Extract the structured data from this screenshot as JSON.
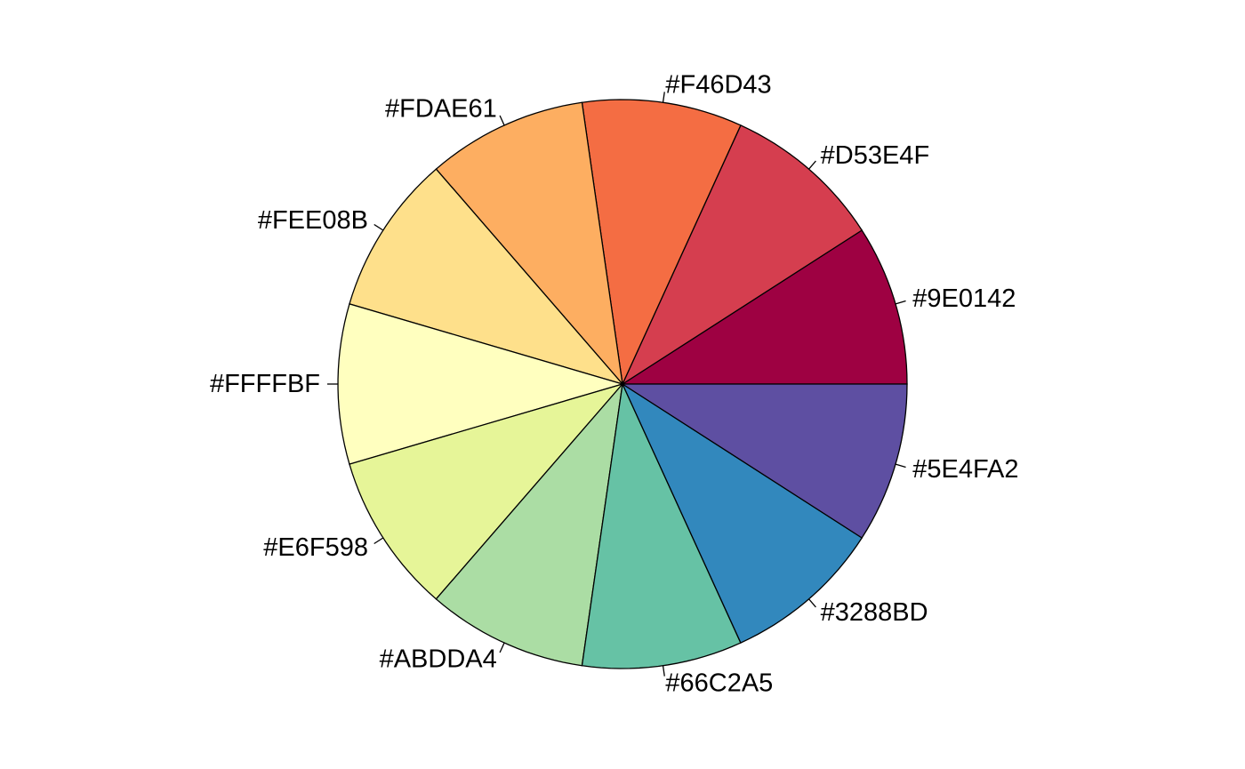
{
  "chart_data": {
    "type": "pie",
    "start_angle_deg": 0,
    "direction": "counterclockwise",
    "slices": [
      {
        "label": "#9E0142",
        "value": 1,
        "color": "#9E0142"
      },
      {
        "label": "#D53E4F",
        "value": 1,
        "color": "#D53E4F"
      },
      {
        "label": "#F46D43",
        "value": 1,
        "color": "#F46D43"
      },
      {
        "label": "#FDAE61",
        "value": 1,
        "color": "#FDAE61"
      },
      {
        "label": "#FEE08B",
        "value": 1,
        "color": "#FEE08B"
      },
      {
        "label": "#FFFFBF",
        "value": 1,
        "color": "#FFFFBF"
      },
      {
        "label": "#E6F598",
        "value": 1,
        "color": "#E6F598"
      },
      {
        "label": "#ABDDA4",
        "value": 1,
        "color": "#ABDDA4"
      },
      {
        "label": "#66C2A5",
        "value": 1,
        "color": "#66C2A5"
      },
      {
        "label": "#3288BD",
        "value": 1,
        "color": "#3288BD"
      },
      {
        "label": "#5E4FA2",
        "value": 1,
        "color": "#5E4FA2"
      }
    ],
    "border_color": "#000000",
    "background": "#FFFFFF"
  }
}
